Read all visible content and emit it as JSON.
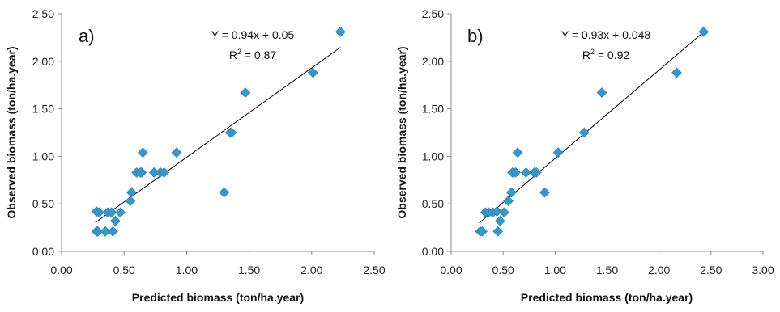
{
  "chart_data": [
    {
      "type": "scatter",
      "panel_label": "a)",
      "xlabel": "Predicted biomass (ton/ha.year)",
      "ylabel": "Observed biomass (ton/ha.year)",
      "xlim": [
        0,
        2.5
      ],
      "ylim": [
        0,
        2.5
      ],
      "x_ticks": [
        "0.00",
        "0.50",
        "1.00",
        "1.50",
        "2.00",
        "2.50"
      ],
      "y_ticks": [
        "0.00",
        "0.50",
        "1.00",
        "1.50",
        "2.00",
        "2.50"
      ],
      "x_tick_values": [
        0,
        0.5,
        1.0,
        1.5,
        2.0,
        2.5
      ],
      "y_tick_values": [
        0,
        0.5,
        1.0,
        1.5,
        2.0,
        2.5
      ],
      "equation": "Y = 0.94x + 0.05",
      "r2_base": "R",
      "r2_exp": "2",
      "r2_value": " = 0.87",
      "trendline": {
        "slope": 0.94,
        "intercept": 0.05,
        "x_range": [
          0.27,
          2.23
        ]
      },
      "marker_color": "#3399cc",
      "x": [
        0.28,
        0.29,
        0.28,
        0.3,
        0.35,
        0.37,
        0.4,
        0.41,
        0.43,
        0.47,
        0.55,
        0.56,
        0.6,
        0.64,
        0.65,
        0.63,
        0.74,
        0.79,
        0.82,
        0.92,
        1.3,
        1.35,
        1.36,
        1.47,
        2.01,
        2.23
      ],
      "y": [
        0.21,
        0.21,
        0.42,
        0.41,
        0.21,
        0.41,
        0.41,
        0.21,
        0.32,
        0.41,
        0.53,
        0.62,
        0.83,
        0.83,
        1.04,
        0.83,
        0.83,
        0.83,
        0.83,
        1.04,
        0.62,
        1.25,
        1.25,
        1.67,
        1.88,
        2.31
      ]
    },
    {
      "type": "scatter",
      "panel_label": "b)",
      "xlabel": "Predicted biomass (ton/ha.year)",
      "ylabel": "Observed biomass (ton/ha.year)",
      "xlim": [
        0,
        3.0
      ],
      "ylim": [
        0,
        2.5
      ],
      "x_ticks": [
        "0.00",
        "0.50",
        "1.00",
        "1.50",
        "2.00",
        "2.50",
        "3.00"
      ],
      "y_ticks": [
        "0.00",
        "0.50",
        "1.00",
        "1.50",
        "2.00",
        "2.50"
      ],
      "x_tick_values": [
        0,
        0.5,
        1.0,
        1.5,
        2.0,
        2.5,
        3.0
      ],
      "y_tick_values": [
        0,
        0.5,
        1.0,
        1.5,
        2.0,
        2.5
      ],
      "equation": "Y = 0.93x + 0.048",
      "r2_base": "R",
      "r2_exp": "2",
      "r2_value": " = 0.92",
      "trendline": {
        "slope": 0.93,
        "intercept": 0.048,
        "x_range": [
          0.27,
          2.45
        ]
      },
      "marker_color": "#3399cc",
      "x": [
        0.28,
        0.3,
        0.33,
        0.36,
        0.4,
        0.44,
        0.45,
        0.47,
        0.51,
        0.55,
        0.58,
        0.59,
        0.62,
        0.64,
        0.72,
        0.8,
        0.82,
        0.9,
        1.03,
        1.28,
        1.45,
        2.17,
        2.43
      ],
      "y": [
        0.21,
        0.21,
        0.41,
        0.41,
        0.41,
        0.42,
        0.21,
        0.32,
        0.41,
        0.53,
        0.62,
        0.83,
        0.83,
        1.04,
        0.83,
        0.83,
        0.83,
        0.62,
        1.04,
        1.25,
        1.67,
        1.88,
        2.31
      ]
    }
  ]
}
